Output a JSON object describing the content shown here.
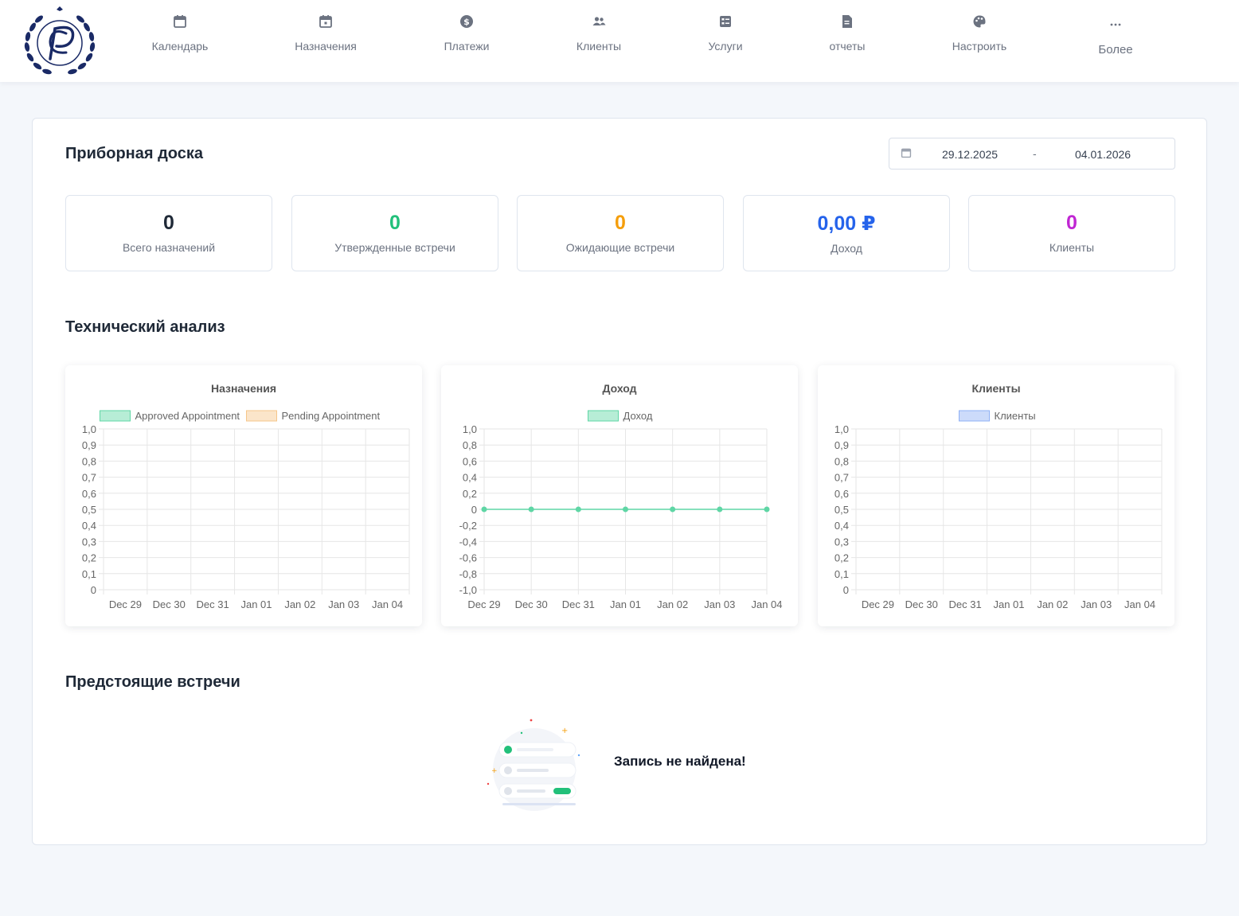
{
  "nav": {
    "items": [
      {
        "label": "Календарь",
        "icon": "calendar-icon"
      },
      {
        "label": "Назначения",
        "icon": "calendar-check-icon"
      },
      {
        "label": "Платежи",
        "icon": "dollar-icon"
      },
      {
        "label": "Клиенты",
        "icon": "users-icon"
      },
      {
        "label": "Услуги",
        "icon": "services-icon"
      },
      {
        "label": "отчеты",
        "icon": "report-icon"
      },
      {
        "label": "Настроить",
        "icon": "palette-icon"
      },
      {
        "label": "Более",
        "icon": "more-icon"
      }
    ]
  },
  "dashboard": {
    "title": "Приборная доска",
    "date_from": "29.12.2025",
    "date_separator": "-",
    "date_to": "04.01.2026",
    "stats": [
      {
        "value": "0",
        "label": "Всего назначений",
        "color": "#1f2937"
      },
      {
        "value": "0",
        "label": "Утвержденные встречи",
        "color": "#22c07a"
      },
      {
        "value": "0",
        "label": "Ожидающие встречи",
        "color": "#f59e0b"
      },
      {
        "value": "0,00 ₽",
        "label": "Доход",
        "color": "#2563eb"
      },
      {
        "value": "0",
        "label": "Клиенты",
        "color": "#c026d3"
      }
    ],
    "analysis_title": "Технический анализ",
    "upcoming_title": "Предстоящие встречи",
    "empty_message": "Запись не найдена!"
  },
  "chart_data": [
    {
      "type": "bar",
      "title": "Назначения",
      "categories": [
        "Dec 29",
        "Dec 30",
        "Dec 31",
        "Jan 01",
        "Jan 02",
        "Jan 03",
        "Jan 04"
      ],
      "series": [
        {
          "name": "Approved Appointment",
          "values": [
            0,
            0,
            0,
            0,
            0,
            0,
            0
          ],
          "color": "#5fd6a5"
        },
        {
          "name": "Pending Appointment",
          "values": [
            0,
            0,
            0,
            0,
            0,
            0,
            0
          ],
          "color": "#f6c68a"
        }
      ],
      "ylim": [
        0,
        1
      ],
      "yticks": [
        "1,0",
        "0,9",
        "0,8",
        "0,7",
        "0,6",
        "0,5",
        "0,4",
        "0,3",
        "0,2",
        "0,1",
        "0"
      ],
      "grid": true,
      "legend": "top"
    },
    {
      "type": "line",
      "title": "Доход",
      "categories": [
        "Dec 29",
        "Dec 30",
        "Dec 31",
        "Jan 01",
        "Jan 02",
        "Jan 03",
        "Jan 04"
      ],
      "series": [
        {
          "name": "Доход",
          "values": [
            0,
            0,
            0,
            0,
            0,
            0,
            0
          ],
          "color": "#5fd6a5"
        }
      ],
      "ylim": [
        -1,
        1
      ],
      "yticks": [
        "1,0",
        "0,8",
        "0,6",
        "0,4",
        "0,2",
        "0",
        "-0,2",
        "-0,4",
        "-0,6",
        "-0,8",
        "-1,0"
      ],
      "grid": true,
      "legend": "top"
    },
    {
      "type": "bar",
      "title": "Клиенты",
      "categories": [
        "Dec 29",
        "Dec 30",
        "Dec 31",
        "Jan 01",
        "Jan 02",
        "Jan 03",
        "Jan 04"
      ],
      "series": [
        {
          "name": "Клиенты",
          "values": [
            0,
            0,
            0,
            0,
            0,
            0,
            0
          ],
          "color": "#8fb0f5"
        }
      ],
      "ylim": [
        0,
        1
      ],
      "yticks": [
        "1,0",
        "0,9",
        "0,8",
        "0,7",
        "0,6",
        "0,5",
        "0,4",
        "0,3",
        "0,2",
        "0,1",
        "0"
      ],
      "grid": true,
      "legend": "top"
    }
  ]
}
